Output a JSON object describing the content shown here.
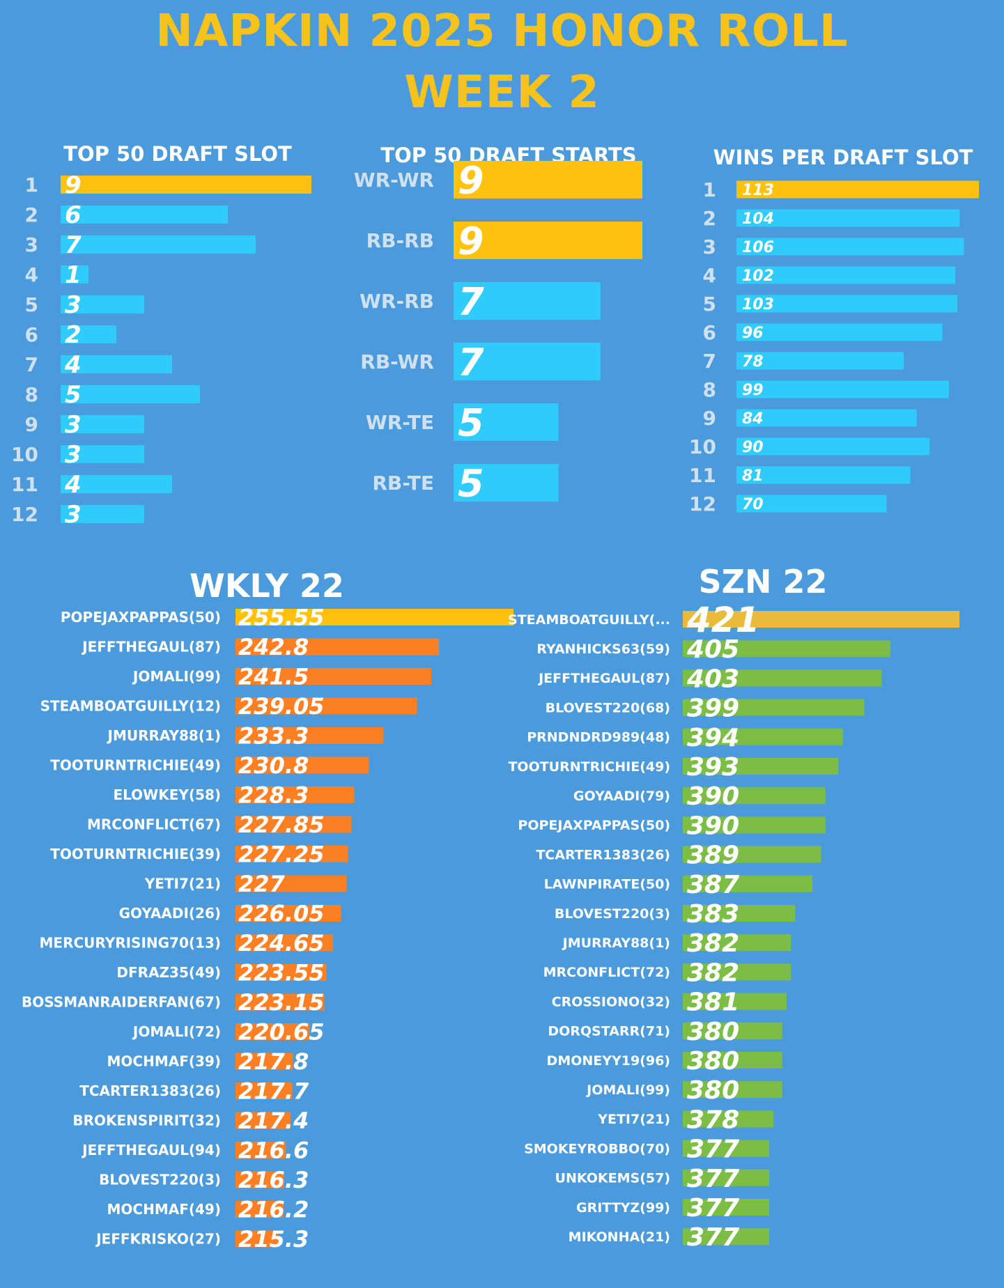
{
  "header": {
    "title": "NAPKIN 2025 HONOR ROLL",
    "subtitle": "WEEK 2"
  },
  "colors": {
    "background": "#4b9bdc",
    "gold": "#fec10d",
    "cyan": "#2ecbfb",
    "orange": "#fc7f23",
    "green": "#7bbd45",
    "title_yellow": "#f7c21b"
  },
  "chart_data": [
    {
      "type": "bar",
      "title": "TOP 50 DRAFT SLOT",
      "orientation": "horizontal",
      "categories": [
        "1",
        "2",
        "3",
        "4",
        "5",
        "6",
        "7",
        "8",
        "9",
        "10",
        "11",
        "12"
      ],
      "values": [
        9,
        6,
        7,
        1,
        3,
        2,
        4,
        5,
        3,
        3,
        4,
        3
      ],
      "highlight_index": 0,
      "xlim": [
        0,
        9
      ]
    },
    {
      "type": "bar",
      "title": "TOP 50 DRAFT STARTS",
      "orientation": "horizontal",
      "categories": [
        "WR-WR",
        "RB-RB",
        "WR-RB",
        "RB-WR",
        "WR-TE",
        "RB-TE"
      ],
      "values": [
        9,
        9,
        7,
        7,
        5,
        5
      ],
      "highlight_indices": [
        0,
        1
      ],
      "xlim": [
        0,
        9
      ]
    },
    {
      "type": "bar",
      "title": "WINS PER DRAFT SLOT",
      "orientation": "horizontal",
      "categories": [
        "1",
        "2",
        "3",
        "4",
        "5",
        "6",
        "7",
        "8",
        "9",
        "10",
        "11",
        "12"
      ],
      "values": [
        113,
        104,
        106,
        102,
        103,
        96,
        78,
        99,
        84,
        90,
        81,
        70
      ],
      "highlight_index": 0,
      "xlim": [
        0,
        113
      ]
    },
    {
      "type": "bar",
      "title": "WKLY 22",
      "orientation": "horizontal",
      "categories": [
        "POPEJAXPAPPAS(50)",
        "JEFFTHEGAUL(87)",
        "JOMALI(99)",
        "STEAMBOATGUILLY(12)",
        "JMURRAY88(1)",
        "TOOTURNTRICHIE(49)",
        "ELOWKEY(58)",
        "MRCONFLICT(67)",
        "TOOTURNTRICHIE(39)",
        "YETI7(21)",
        "GOYAADI(26)",
        "MERCURYRISING70(13)",
        "DFRAZ35(49)",
        "BOSSMANRAIDERFAN(67)",
        "JOMALI(72)",
        "MOCHMAF(39)",
        "TCARTER1383(26)",
        "BROKENSPIRIT(32)",
        "JEFFTHEGAUL(94)",
        "BLOVEST220(3)",
        "MOCHMAF(49)",
        "JEFFKRISKO(27)"
      ],
      "values": [
        255.55,
        242.8,
        241.5,
        239.05,
        233.3,
        230.8,
        228.3,
        227.85,
        227.25,
        227,
        226.05,
        224.65,
        223.55,
        223.15,
        220.65,
        217.8,
        217.7,
        217.4,
        216.6,
        216.3,
        216.2,
        215.3
      ],
      "labels": [
        "255.55",
        "242.8",
        "241.5",
        "239.05",
        "233.3",
        "230.8",
        "228.3",
        "227.85",
        "227.25",
        "227",
        "226.05",
        "224.65",
        "223.55",
        "223.15",
        "220.65",
        "217.8",
        "217.7",
        "217.4",
        "216.6",
        "216.3",
        "216.2",
        "215.3"
      ],
      "highlight_index": 0
    },
    {
      "type": "bar",
      "title": "SZN 22",
      "orientation": "horizontal",
      "categories": [
        "STEAMBOATGUILLY(...",
        "RYANHICKS63(59)",
        "JEFFTHEGAUL(87)",
        "BLOVEST220(68)",
        "PRNDNDRD989(48)",
        "TOOTURNTRICHIE(49)",
        "GOYAADI(79)",
        "POPEJAXPAPPAS(50)",
        "TCARTER1383(26)",
        "LAWNPIRATE(50)",
        "BLOVEST220(3)",
        "JMURRAY88(1)",
        "MRCONFLICT(72)",
        "CROSSIONO(32)",
        "DORQSTARR(71)",
        "DMONEYY19(96)",
        "JOMALI(99)",
        "YETI7(21)",
        "SMOKEYROBBO(70)",
        "UNKOKEMS(57)",
        "GRITTYZ(99)",
        "MIKONHA(21)"
      ],
      "values": [
        421,
        405,
        403,
        399,
        394,
        393,
        390,
        390,
        389,
        387,
        383,
        382,
        382,
        381,
        380,
        380,
        380,
        378,
        377,
        377,
        377,
        377
      ],
      "highlight_index": 0
    }
  ]
}
